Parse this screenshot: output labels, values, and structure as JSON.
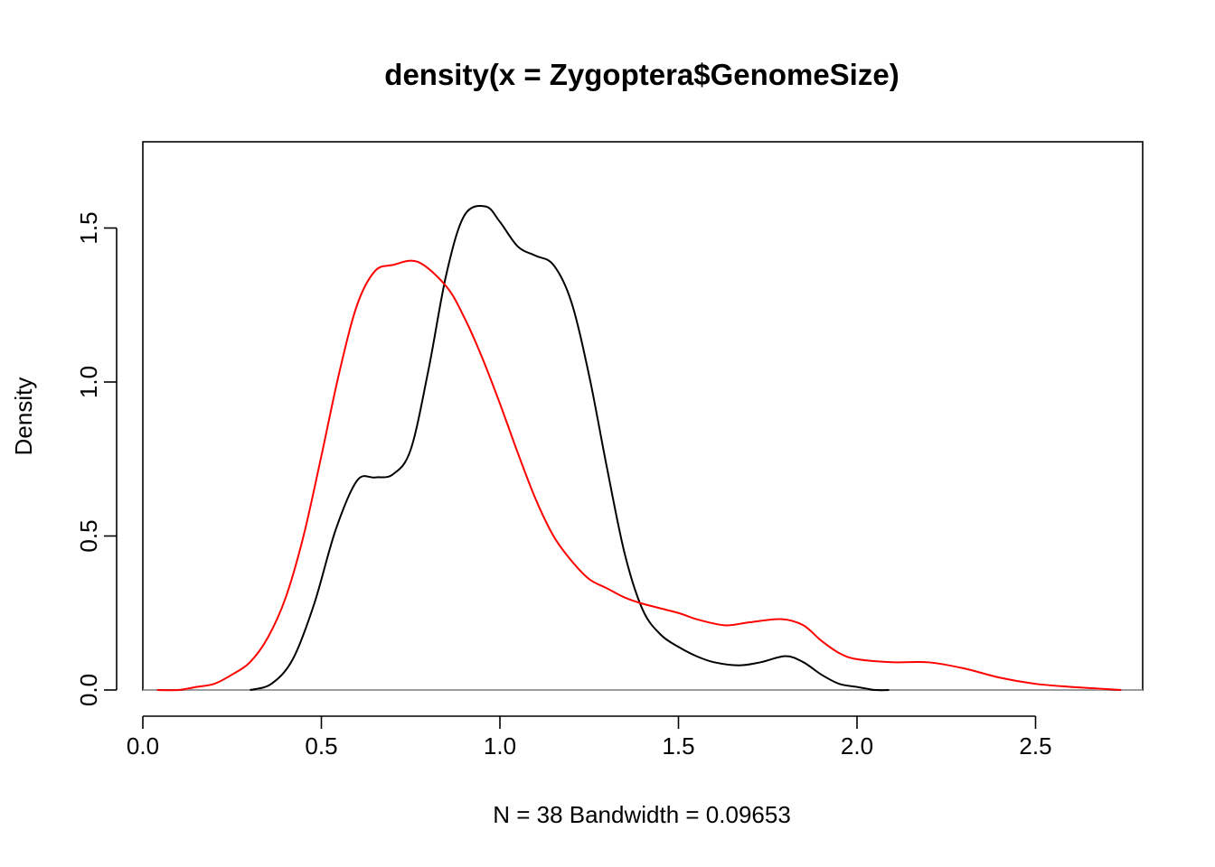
{
  "chart_data": {
    "type": "line",
    "title": "density(x = Zygoptera$GenomeSize)",
    "xlabel": "N = 38   Bandwidth = 0.09653",
    "ylabel": "Density",
    "xlim": [
      0.0,
      2.8
    ],
    "ylim": [
      0.0,
      1.78
    ],
    "x_ticks": [
      "0.0",
      "0.5",
      "1.0",
      "1.5",
      "2.0",
      "2.5"
    ],
    "y_ticks": [
      "0.0",
      "0.5",
      "1.0",
      "1.5"
    ],
    "baseline": 0,
    "grid": false,
    "series": [
      {
        "color": "#000000",
        "x": [
          0.3,
          0.36,
          0.42,
          0.48,
          0.54,
          0.6,
          0.65,
          0.7,
          0.75,
          0.8,
          0.85,
          0.9,
          0.96,
          1.0,
          1.05,
          1.1,
          1.15,
          1.2,
          1.25,
          1.3,
          1.35,
          1.4,
          1.45,
          1.5,
          1.55,
          1.6,
          1.67,
          1.73,
          1.8,
          1.85,
          1.9,
          1.95,
          2.0,
          2.05,
          2.09
        ],
        "y": [
          0.0,
          0.02,
          0.1,
          0.28,
          0.52,
          0.68,
          0.69,
          0.7,
          0.78,
          1.04,
          1.35,
          1.54,
          1.57,
          1.52,
          1.44,
          1.41,
          1.38,
          1.26,
          1.02,
          0.72,
          0.44,
          0.26,
          0.18,
          0.14,
          0.11,
          0.09,
          0.08,
          0.09,
          0.11,
          0.09,
          0.05,
          0.02,
          0.01,
          0.0,
          0.0
        ]
      },
      {
        "color": "#ff0000",
        "x": [
          0.04,
          0.1,
          0.15,
          0.2,
          0.25,
          0.3,
          0.35,
          0.4,
          0.45,
          0.5,
          0.55,
          0.6,
          0.65,
          0.7,
          0.77,
          0.85,
          0.9,
          0.95,
          1.0,
          1.05,
          1.1,
          1.15,
          1.2,
          1.25,
          1.3,
          1.35,
          1.4,
          1.5,
          1.55,
          1.63,
          1.7,
          1.79,
          1.85,
          1.9,
          1.95,
          2.0,
          2.1,
          2.2,
          2.3,
          2.4,
          2.5,
          2.6,
          2.74
        ],
        "y": [
          0.0,
          0.0,
          0.01,
          0.02,
          0.05,
          0.09,
          0.17,
          0.3,
          0.5,
          0.76,
          1.03,
          1.25,
          1.36,
          1.38,
          1.39,
          1.31,
          1.21,
          1.08,
          0.93,
          0.77,
          0.62,
          0.5,
          0.42,
          0.36,
          0.33,
          0.3,
          0.28,
          0.25,
          0.23,
          0.21,
          0.22,
          0.23,
          0.21,
          0.16,
          0.12,
          0.1,
          0.09,
          0.09,
          0.07,
          0.04,
          0.02,
          0.01,
          0.0
        ]
      }
    ]
  }
}
